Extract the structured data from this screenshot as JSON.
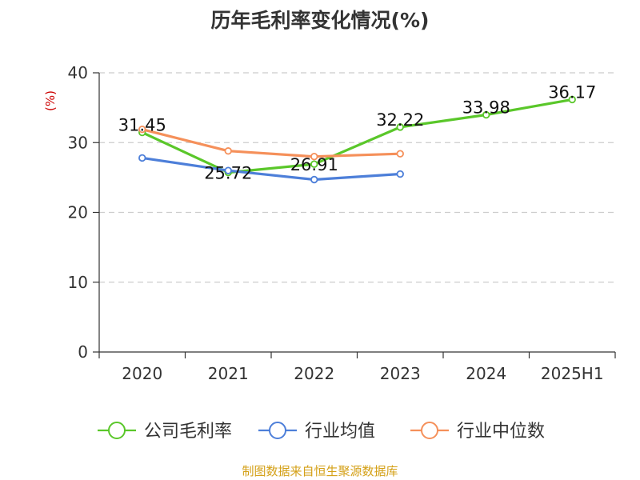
{
  "chart_data": {
    "type": "line",
    "title": "历年毛利率变化情况(%)",
    "ylabel": "(%)",
    "xlabel": "",
    "categories": [
      "2020",
      "2021",
      "2022",
      "2023",
      "2024",
      "2025H1"
    ],
    "ylim": [
      0,
      40
    ],
    "yticks": [
      0,
      10,
      20,
      30,
      40
    ],
    "grid": true,
    "legend_position": "bottom",
    "series": [
      {
        "name": "公司毛利率",
        "color": "#5ac72a",
        "values": [
          31.45,
          25.72,
          26.91,
          32.22,
          33.98,
          36.17
        ],
        "labels": [
          "31.45",
          "25.72",
          "26.91",
          "32.22",
          "33.98",
          "36.17"
        ]
      },
      {
        "name": "行业均值",
        "color": "#4d7fd9",
        "values": [
          27.8,
          26.0,
          24.7,
          25.5,
          null,
          null
        ]
      },
      {
        "name": "行业中位数",
        "color": "#f5905a",
        "values": [
          31.9,
          28.8,
          28.0,
          28.4,
          null,
          null
        ]
      }
    ]
  },
  "source": "制图数据来自恒生聚源数据库"
}
